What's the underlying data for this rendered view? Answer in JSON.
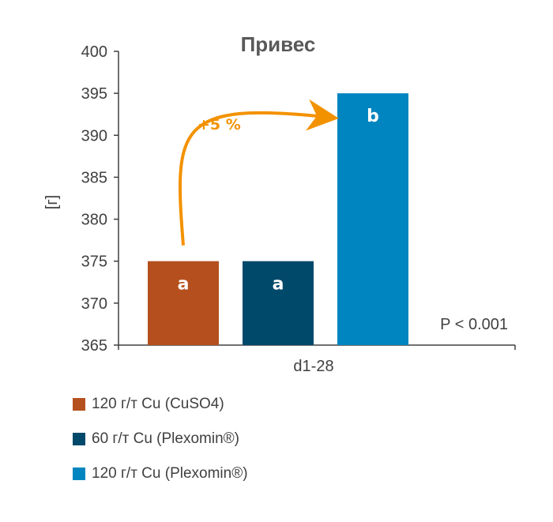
{
  "chart_data": {
    "type": "bar",
    "title": "Привес",
    "ylabel": "[г]",
    "xlabel": "",
    "categories": [
      "d1-28"
    ],
    "ylim": [
      365,
      400
    ],
    "yticks": [
      365,
      370,
      375,
      380,
      385,
      390,
      395,
      400
    ],
    "grid": false,
    "legend_position": "bottom-left",
    "series": [
      {
        "name": "120 г/т Cu (CuSO4)",
        "values": [
          375
        ],
        "color": "#b5501e",
        "label": "a"
      },
      {
        "name": "60 г/т Cu (Plexomin®)",
        "values": [
          375
        ],
        "color": "#00496b",
        "label": "a"
      },
      {
        "name": "120 г/т Cu (Plexomin®)",
        "values": [
          395
        ],
        "color": "#0085c0",
        "label": "b"
      }
    ],
    "annotations": {
      "increase_label": "+5 %",
      "increase_color": "#f39200",
      "p_value": "P < 0.001"
    }
  }
}
